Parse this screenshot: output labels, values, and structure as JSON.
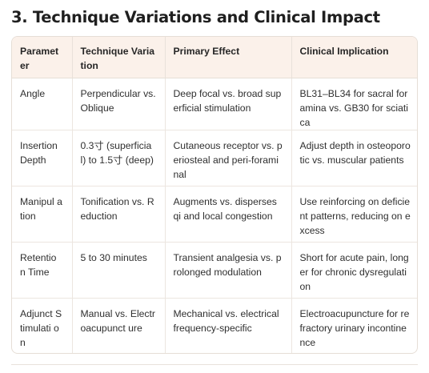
{
  "title": "3. Technique Variations and Clinical Impact",
  "table": {
    "headers": [
      "Paramet er",
      "Technique Variation",
      "Primary Effect",
      "Clinical Implication"
    ],
    "rows": [
      [
        "Angle",
        "Perpendicular vs. Oblique",
        "Deep focal vs. broad superficial stimulation",
        "BL31–BL34 for sacral foramina vs. GB30 for sciatica"
      ],
      [
        "Insertion Depth",
        "0.3寸 (superficial) to 1.5寸 (deep)",
        "Cutaneous receptor vs. periosteal and peri-foraminal",
        "Adjust depth in osteoporotic vs. muscular patients"
      ],
      [
        "Manipul ation",
        "Tonification vs. Reduction",
        "Augments vs. disperses qi and local congestion",
        "Use reinforcing on deficient patterns, reducing on excess"
      ],
      [
        "Retentio n Time",
        "5 to 30 minutes",
        "Transient analgesia vs. prolonged modulation",
        "Short for acute pain, longer for chronic dysregulation"
      ],
      [
        "Adjunct Stimulati on",
        "Manual vs. Electroacupunct ure",
        "Mechanical vs. electrical frequency-specific",
        "Electroacupuncture for refractory urinary incontinence"
      ]
    ]
  }
}
